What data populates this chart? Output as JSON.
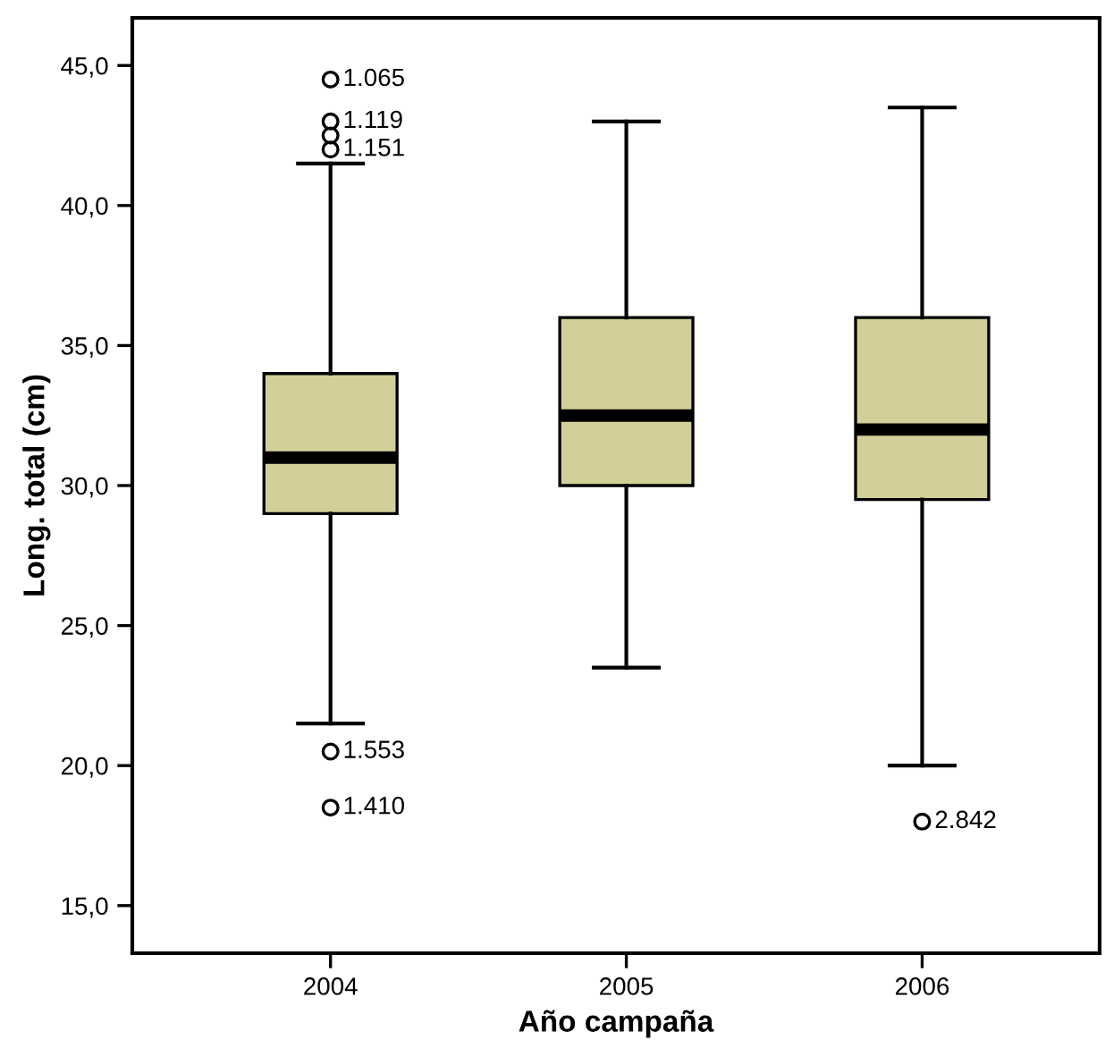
{
  "chart_data": {
    "type": "box",
    "xlabel": "Año campaña",
    "ylabel": "Long. total (cm)",
    "categories": [
      "2004",
      "2005",
      "2006"
    ],
    "color": "#d3cf99",
    "boxes": [
      {
        "low": 21.5,
        "q1": 29,
        "median": 31,
        "q3": 34,
        "high": 41.5,
        "outliers": [
          44.5,
          43.0,
          42.5,
          42.0,
          20.5,
          18.5
        ]
      },
      {
        "low": 23.5,
        "q1": 30,
        "median": 32.5,
        "q3": 36,
        "high": 43
      },
      {
        "low": 20,
        "q1": 29.5,
        "median": 32,
        "q3": 36,
        "high": 43.5,
        "outliers": [
          18
        ]
      }
    ],
    "ylim": [
      13.3,
      46.7
    ],
    "yticks": [
      {
        "value": 15,
        "label": "15,0"
      },
      {
        "value": 20,
        "label": "20,0"
      },
      {
        "value": 25,
        "label": "25,0"
      },
      {
        "value": 30,
        "label": "30,0"
      },
      {
        "value": 35,
        "label": "35,0"
      },
      {
        "value": 40,
        "label": "40,0"
      },
      {
        "value": 45,
        "label": "45,0"
      }
    ],
    "annotations": [
      "1.065",
      "1.119",
      "1.151",
      "1.553",
      "1.410",
      "2.842"
    ],
    "grid": false,
    "legend": false
  }
}
